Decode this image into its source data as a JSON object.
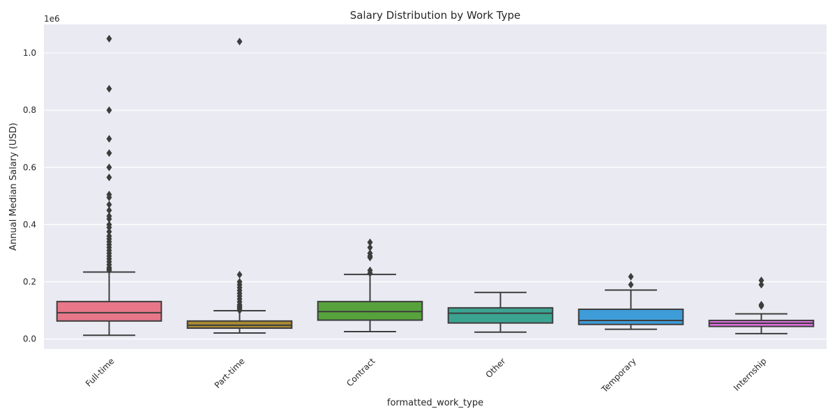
{
  "chart_data": {
    "type": "box",
    "title": "Salary Distribution by Work Type",
    "xlabel": "formatted_work_type",
    "ylabel": "Annual Median Salary (USD)",
    "y_offset_label": "1e6",
    "ylim": [
      -0.035,
      1.1
    ],
    "yticks": [
      0.0,
      0.2,
      0.4,
      0.6,
      0.8,
      1.0
    ],
    "ytick_labels": [
      "0.0",
      "0.2",
      "0.4",
      "0.6",
      "0.8",
      "1.0"
    ],
    "grid": true,
    "categories": [
      "Full-time",
      "Part-time",
      "Contract",
      "Other",
      "Temporary",
      "Internship"
    ],
    "series": [
      {
        "category": "Full-time",
        "color": "#e8778a",
        "whisker_low": 0.013,
        "q1": 0.063,
        "median": 0.092,
        "q3": 0.131,
        "whisker_high": 0.234,
        "outliers": [
          1.05,
          0.875,
          0.8,
          0.7,
          0.65,
          0.6,
          0.565,
          0.505,
          0.495,
          0.47,
          0.45,
          0.43,
          0.42,
          0.4,
          0.39,
          0.375,
          0.36,
          0.35,
          0.34,
          0.33,
          0.32,
          0.31,
          0.3,
          0.29,
          0.28,
          0.27,
          0.26,
          0.25,
          0.245,
          0.24
        ]
      },
      {
        "category": "Part-time",
        "color": "#a88a32",
        "whisker_low": 0.021,
        "q1": 0.038,
        "median": 0.048,
        "q3": 0.063,
        "whisker_high": 0.099,
        "outliers": [
          1.04,
          0.225,
          0.2,
          0.19,
          0.18,
          0.17,
          0.16,
          0.15,
          0.14,
          0.13,
          0.12,
          0.115,
          0.11,
          0.105,
          0.1
        ]
      },
      {
        "category": "Contract",
        "color": "#57a23c",
        "whisker_low": 0.026,
        "q1": 0.066,
        "median": 0.096,
        "q3": 0.131,
        "whisker_high": 0.226,
        "outliers": [
          0.338,
          0.32,
          0.3,
          0.29,
          0.285,
          0.24,
          0.23
        ]
      },
      {
        "category": "Other",
        "color": "#3aa491",
        "whisker_low": 0.024,
        "q1": 0.056,
        "median": 0.09,
        "q3": 0.109,
        "whisker_high": 0.163,
        "outliers": []
      },
      {
        "category": "Temporary",
        "color": "#3e9cd8",
        "whisker_low": 0.034,
        "q1": 0.051,
        "median": 0.065,
        "q3": 0.104,
        "whisker_high": 0.171,
        "outliers": [
          0.218,
          0.19
        ]
      },
      {
        "category": "Internship",
        "color": "#dd6ddf",
        "whisker_low": 0.019,
        "q1": 0.044,
        "median": 0.055,
        "q3": 0.065,
        "whisker_high": 0.088,
        "outliers": [
          0.205,
          0.19,
          0.12,
          0.115
        ]
      }
    ]
  }
}
